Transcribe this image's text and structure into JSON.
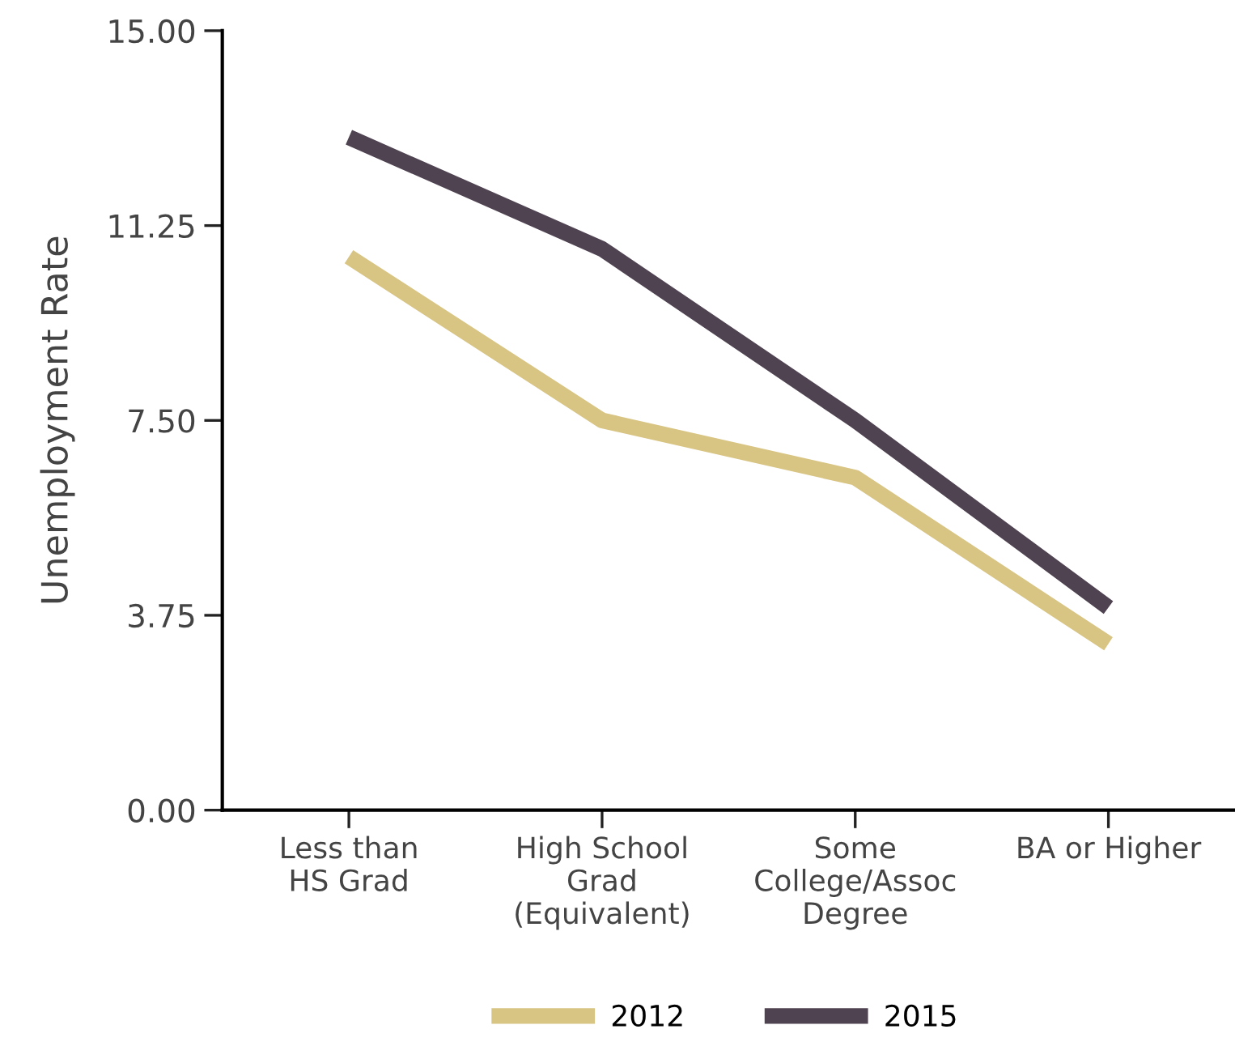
{
  "chart_data": {
    "type": "line",
    "ylabel": "Unemployment Rate",
    "categories": [
      "Less than\nHS Grad",
      "High School\nGrad\n(Equivalent)",
      "Some\nCollege/Assoc\nDegree",
      "BA or Higher"
    ],
    "series": [
      {
        "name": "2012",
        "color": "#d8c483",
        "values": [
          10.65,
          7.5,
          6.4,
          3.2
        ]
      },
      {
        "name": "2015",
        "color": "#4f4351",
        "values": [
          12.95,
          10.8,
          7.5,
          3.9
        ]
      }
    ],
    "ylim": [
      0,
      15
    ],
    "yticks": [
      {
        "value": 0,
        "label": "0.00"
      },
      {
        "value": 3.75,
        "label": "3.75"
      },
      {
        "value": 7.5,
        "label": "7.50"
      },
      {
        "value": 11.25,
        "label": "11.25"
      },
      {
        "value": 15,
        "label": "15.00"
      }
    ],
    "grid": false,
    "legend": "bottom",
    "marker": "none",
    "line_style": "solid"
  }
}
